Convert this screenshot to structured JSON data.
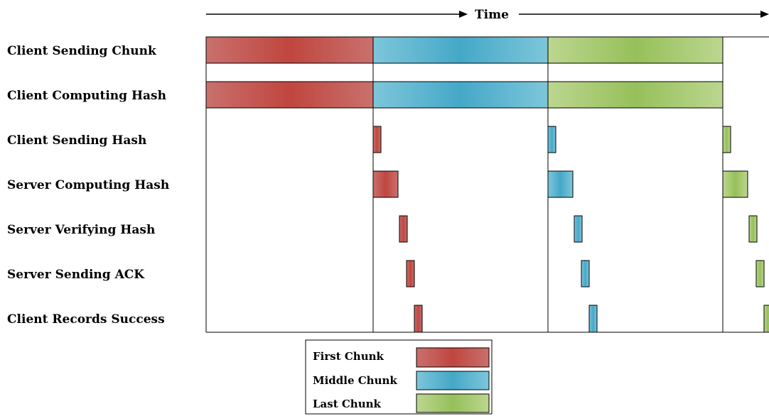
{
  "time_axis": {
    "label": "Time"
  },
  "rows": [
    "Client Sending Chunk",
    "Client Computing Hash",
    "Client Sending Hash",
    "Server Computing Hash",
    "Server Verifying Hash",
    "Server Sending ACK",
    "Client Records Success"
  ],
  "chunks": [
    {
      "key": "first",
      "label": "First Chunk",
      "edge": "#c9706d",
      "mid": "#c0463f",
      "stroke": "#000"
    },
    {
      "key": "middle",
      "label": "Middle Chunk",
      "edge": "#7dc6da",
      "mid": "#45a8c8",
      "stroke": "#000"
    },
    {
      "key": "last",
      "label": "Last Chunk",
      "edge": "#bcd68f",
      "mid": "#96c05a",
      "stroke": "#000"
    }
  ]
}
